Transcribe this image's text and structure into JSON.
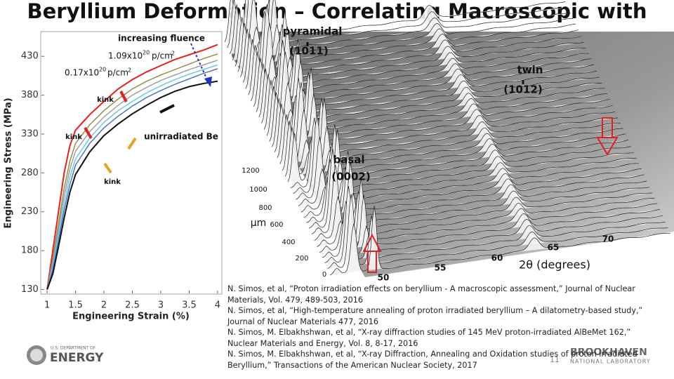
{
  "title": "Beryllium Deformation – Correlating Macroscopic with",
  "chart_data": {
    "type": "line",
    "x_label": "Engineering Strain (%)",
    "y_label": "Engineering Stress (MPa)",
    "x": [
      1.0,
      1.1,
      1.2,
      1.3,
      1.4,
      1.5,
      1.75,
      2,
      2.25,
      2.5,
      2.75,
      3,
      3.25,
      3.5,
      3.75,
      4
    ],
    "xlim": [
      0.9,
      4.05
    ],
    "ylim": [
      125,
      460
    ],
    "xticks": [
      1,
      1.5,
      2,
      2.5,
      3,
      3.5,
      4
    ],
    "yticks": [
      130,
      180,
      230,
      280,
      330,
      380,
      430
    ],
    "series": [
      {
        "color": "#e8201c",
        "values": [
          130,
          180,
          230,
          280,
          315,
          335,
          355,
          372,
          388,
          400,
          410,
          418,
          426,
          432,
          438,
          445
        ]
      },
      {
        "color": "#8c8c3c",
        "values": [
          130,
          170,
          215,
          260,
          295,
          318,
          342,
          360,
          375,
          388,
          398,
          406,
          413,
          420,
          427,
          433
        ]
      },
      {
        "color": "#9a9a9a",
        "values": [
          130,
          165,
          208,
          250,
          285,
          308,
          333,
          352,
          367,
          380,
          390,
          399,
          406,
          413,
          419,
          425
        ]
      },
      {
        "color": "#5cc8e6",
        "values": [
          130,
          160,
          200,
          240,
          275,
          298,
          325,
          345,
          360,
          372,
          383,
          392,
          400,
          407,
          413,
          419
        ]
      },
      {
        "color": "#3d6fc0",
        "values": [
          130,
          155,
          193,
          232,
          265,
          290,
          318,
          338,
          353,
          366,
          377,
          386,
          394,
          401,
          408,
          414
        ]
      },
      {
        "color": "#111111",
        "values": [
          130,
          150,
          185,
          222,
          255,
          278,
          307,
          328,
          343,
          356,
          367,
          377,
          385,
          391,
          395,
          398
        ]
      }
    ],
    "annotations": [
      "increasing fluence",
      "1.09x10",
      "20",
      "p/cm",
      "2",
      "0.17x10",
      "20",
      "p/cm",
      "2",
      "kink",
      "kink",
      "kink",
      "unirradiated Be"
    ]
  },
  "diffraction": {
    "labels": [
      "pyramidal",
      "(1011)",
      "twin",
      "(1012)",
      "basal",
      "(0002)",
      "µm",
      "2θ (degrees)"
    ],
    "depth_ticks": [
      "1200",
      "1000",
      "800",
      "600",
      "400",
      "200",
      "0"
    ],
    "angle_ticks": [
      "50",
      "55",
      "60",
      "65",
      "70"
    ]
  },
  "references": [
    "N. Simos, et al,  “Proton irradiation effects on beryllium - A macroscopic assessment,”  Journal of Nuclear Materials, Vol. 479, 489-503, 2016",
    "N. Simos, et al,  “High-temperature annealing of proton irradiated beryllium – A dilatometry-based study,” Journal of Nuclear Materials 477, 2016",
    "N. Simos, M. Elbakhshwan, et al,  “X-ray diffraction studies of 145 MeV proton-irradiated AlBeMet 162,” Nuclear Materials and Energy, Vol. 8, 8-17, 2016",
    "N. Simos, M. Elbakhshwan, et al,  “X-ray Diffraction, Annealing and Oxidation studies of proton irradiated Beryllium,”  Transactions of the American Nuclear Society, 2017"
  ],
  "footer": {
    "doe_small": "U.S. DEPARTMENT OF",
    "doe": "ENERGY",
    "bnl": "BROOKHAVEN",
    "bnl_sub": "NATIONAL LABORATORY",
    "page": "11"
  }
}
